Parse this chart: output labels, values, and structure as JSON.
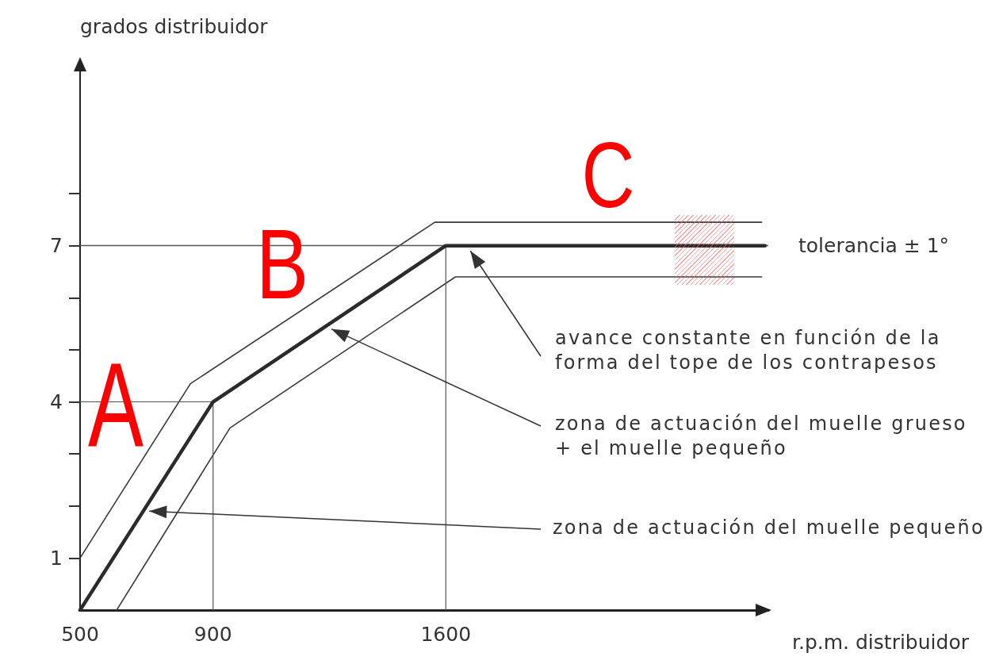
{
  "chart_data": {
    "type": "line",
    "xlabel": "r.p.m. distribuidor",
    "ylabel": "grados distribuidor",
    "xlim": [
      500,
      2570
    ],
    "xticks": [
      500,
      900,
      1600
    ],
    "ylim": [
      0,
      10.5
    ],
    "yticks": [
      1,
      {
        "value": 2,
        "label": null
      },
      {
        "value": 3,
        "label": null
      },
      4,
      {
        "value": 5,
        "label": null
      },
      {
        "value": 6,
        "label": null
      },
      7,
      {
        "value": 8,
        "label": null
      }
    ],
    "marker": "none",
    "line_style": "solid",
    "series": [
      {
        "color": "#2b2b2b",
        "x": [
          500,
          900,
          1600,
          2560
        ],
        "values": [
          0,
          4,
          7,
          7
        ]
      },
      {
        "color": "#3a3a3a",
        "x": [
          500,
          832,
          1567,
          2550
        ],
        "values": [
          1,
          4.35,
          7.45,
          7.45
        ]
      },
      {
        "color": "#3a3a3a",
        "x": [
          610,
          951,
          1629,
          2550
        ],
        "values": [
          0,
          3.5,
          6.4,
          6.4
        ]
      },
      {
        "color": "#555555",
        "x": [
          500,
          900
        ],
        "values": [
          4,
          4
        ]
      },
      {
        "color": "#555555",
        "x": [
          900,
          900
        ],
        "values": [
          0,
          4
        ]
      },
      {
        "color": "#555555",
        "x": [
          1600,
          1600
        ],
        "values": [
          0,
          7
        ]
      }
    ],
    "ref_lines": [
      {
        "axis": "y",
        "value": 7,
        "label": "tolerancia ± 1°",
        "color": "#555555"
      }
    ],
    "annotations": [
      "A",
      "B",
      "C",
      {
        "text": "avance constante en función de la forma del tope de los contrapesos",
        "x": 1674,
        "y": 6.9
      },
      {
        "text": "zona de actuación del muelle grueso + el muelle pequeño",
        "x": 1256,
        "y": 5.4
      },
      {
        "text": "zona de actuación del muelle pequeño",
        "x": 708,
        "y": 1.9
      }
    ]
  }
}
